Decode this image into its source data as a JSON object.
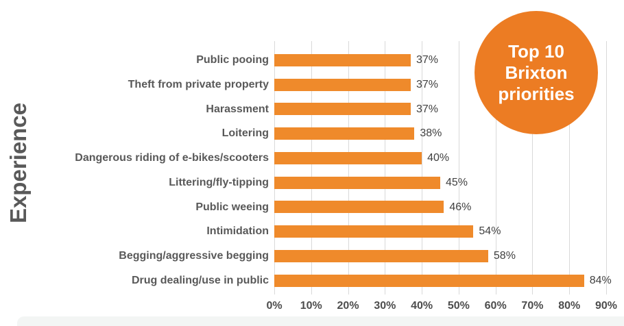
{
  "chart_data": {
    "type": "bar",
    "orientation": "horizontal",
    "categories": [
      "Public pooing",
      "Theft from private property",
      "Harassment",
      "Loitering",
      "Dangerous riding of e-bikes/scooters",
      "Littering/fly-tipping",
      "Public weeing",
      "Intimidation",
      "Begging/aggressive begging",
      "Drug dealing/use in public"
    ],
    "values": [
      37,
      37,
      37,
      38,
      40,
      45,
      46,
      54,
      58,
      84
    ],
    "value_labels": [
      "37%",
      "37%",
      "37%",
      "38%",
      "40%",
      "45%",
      "46%",
      "54%",
      "58%",
      "84%"
    ],
    "ylabel": "Experience",
    "xlabel": "",
    "x_ticks": [
      "0%",
      "10%",
      "20%",
      "30%",
      "40%",
      "50%",
      "60%",
      "70%",
      "80%",
      "90%"
    ],
    "xlim": [
      0,
      90
    ],
    "grid": true,
    "legend": "none",
    "bar_color": "#EF8A2B"
  },
  "badge": {
    "lines": [
      "Top 10",
      "Brixton",
      "priorities"
    ],
    "bg_color": "#EC7C23",
    "text_color": "#FFFFFF"
  },
  "colors": {
    "category_label": "#595959",
    "value_label": "#404040",
    "tick_label": "#4D4D4D",
    "gridline": "#D9D9D9",
    "background": "#FFFFFF",
    "footer_strip": "#F3F5F4"
  }
}
